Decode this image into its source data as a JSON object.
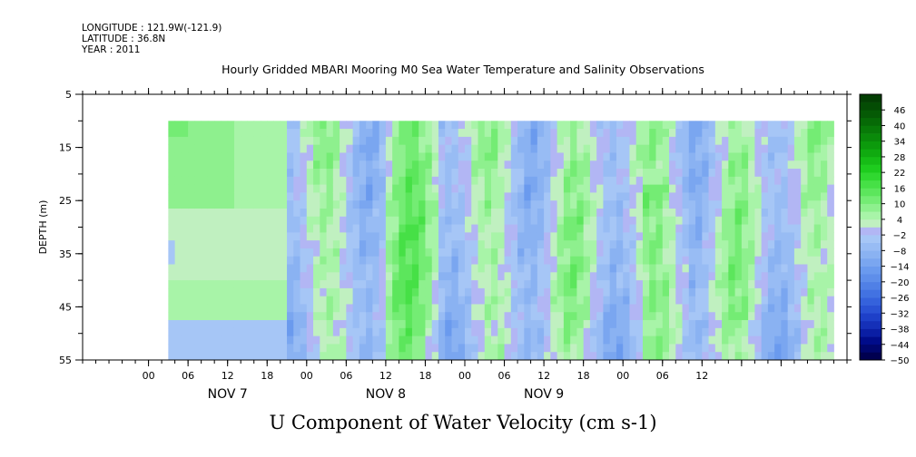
{
  "header": {
    "longitude": "LONGITUDE : 121.9W(-121.9)",
    "latitude": "LATITUDE : 36.8N",
    "year": "YEAR : 2011",
    "title": "Hourly Gridded MBARI Mooring M0 Sea Water Temperature and Salinity Observations"
  },
  "footer": {
    "label": "U Component of Water Velocity (cm s-1)"
  },
  "chart_data": {
    "type": "heatmap",
    "title": "Hourly Gridded MBARI Mooring M0 Sea Water Temperature and Salinity Observations",
    "xlabel": "",
    "ylabel": "DEPTH (m)",
    "colorbar_label": "U Component of Water Velocity (cm s-1)",
    "x_hours_range": [
      -10,
      106
    ],
    "data_start_hour": 3,
    "data_end_hour": 104,
    "x_tick_hours": [
      0,
      6,
      12,
      18,
      24,
      30,
      36,
      42,
      48,
      54,
      60,
      66,
      72,
      78,
      84,
      90,
      96
    ],
    "x_tick_labels": [
      "00",
      "06",
      "12",
      "18",
      "00",
      "06",
      "12",
      "18",
      "00",
      "06",
      "12",
      "18",
      "00",
      "06",
      "12"
    ],
    "x_tick_label_hours": [
      0,
      6,
      12,
      18,
      24,
      30,
      36,
      42,
      48,
      54,
      60,
      66,
      72,
      78,
      84
    ],
    "date_labels": [
      {
        "text": "NOV 7",
        "hour": 12
      },
      {
        "text": "NOV 8",
        "hour": 36
      },
      {
        "text": "NOV 9",
        "hour": 60
      }
    ],
    "ylim": [
      5,
      55
    ],
    "y_tick_labels": [
      "5",
      "15",
      "25",
      "35",
      "45",
      "55"
    ],
    "y_tick_values": [
      5,
      15,
      25,
      35,
      45,
      55
    ],
    "depth_top_of_data": 10,
    "colorbar": {
      "labels": [
        "46",
        "40",
        "34",
        "28",
        "22",
        "16",
        "10",
        "4",
        "-2",
        "-8",
        "-14",
        "-20",
        "-26",
        "-32",
        "-38",
        "-44",
        "-50"
      ],
      "min": -50,
      "max": 52,
      "step": 3
    },
    "levels_colors": {
      "-50": "#000050",
      "-47": "#00066e",
      "-44": "#000c8a",
      "-41": "#0a1ea4",
      "-38": "#1530b8",
      "-35": "#1e40c8",
      "-32": "#2a52d4",
      "-29": "#3562dc",
      "-26": "#4272e2",
      "-23": "#5080e6",
      "-20": "#5e8eea",
      "-17": "#6a9aee",
      "-14": "#7aa6f0",
      "-11": "#8ab2f2",
      "-8": "#98bcf4",
      "-5": "#a6c6f6",
      "-2": "#b2b6f4",
      "1": "#c0f0c0",
      "4": "#a8f4a8",
      "7": "#8ef08e",
      "10": "#74ec74",
      "13": "#5ce65c",
      "16": "#46e046",
      "19": "#30d830",
      "22": "#1ecc1e",
      "25": "#16bc16",
      "28": "#10aa10",
      "31": "#0c9a0c",
      "34": "#0a8a0a",
      "37": "#087a08",
      "40": "#066a06",
      "43": "#055a05",
      "46": "#044c04",
      "49": "#033e03"
    },
    "regions_description": "calm light-green upper-left, light-blue bottom band, alternating blue/green vertical bands after NOV 7 21h"
  }
}
